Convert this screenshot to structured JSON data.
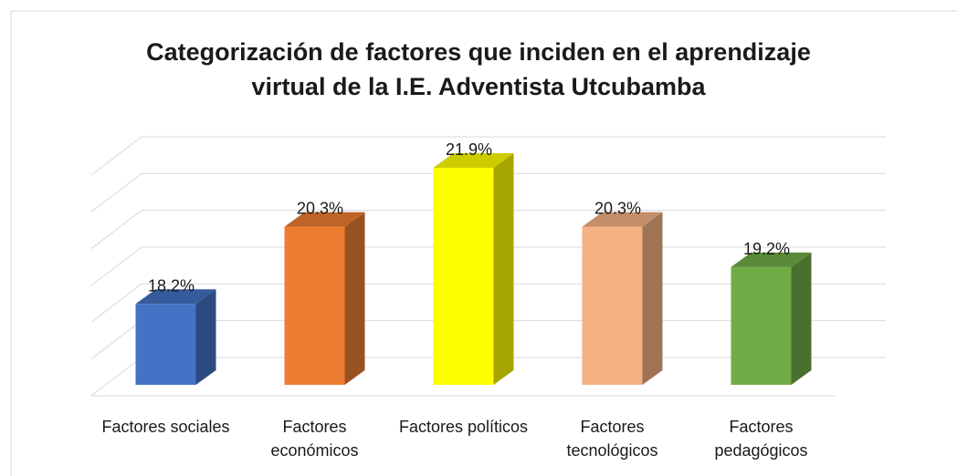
{
  "chart_data": {
    "type": "bar3d",
    "title": "Categorización de factores que inciden en el aprendizaje virtual de la I.E. Adventista Utcubamba",
    "categories": [
      "Factores sociales",
      "Factores económicos",
      "Factores políticos",
      "Factores tecnológicos",
      "Factores pedagógicos"
    ],
    "values": [
      18.2,
      20.3,
      21.9,
      20.3,
      19.2
    ],
    "value_labels": [
      "18.2%",
      "20.3%",
      "21.9%",
      "20.3%",
      "19.2%"
    ],
    "colors": [
      "#4472c4",
      "#ed7d31",
      "#ffff00",
      "#f4b183",
      "#70ad47"
    ],
    "ylim": [
      16,
      22
    ],
    "yticks": [
      16,
      17,
      18,
      19,
      20,
      21,
      22
    ],
    "grid": true
  }
}
